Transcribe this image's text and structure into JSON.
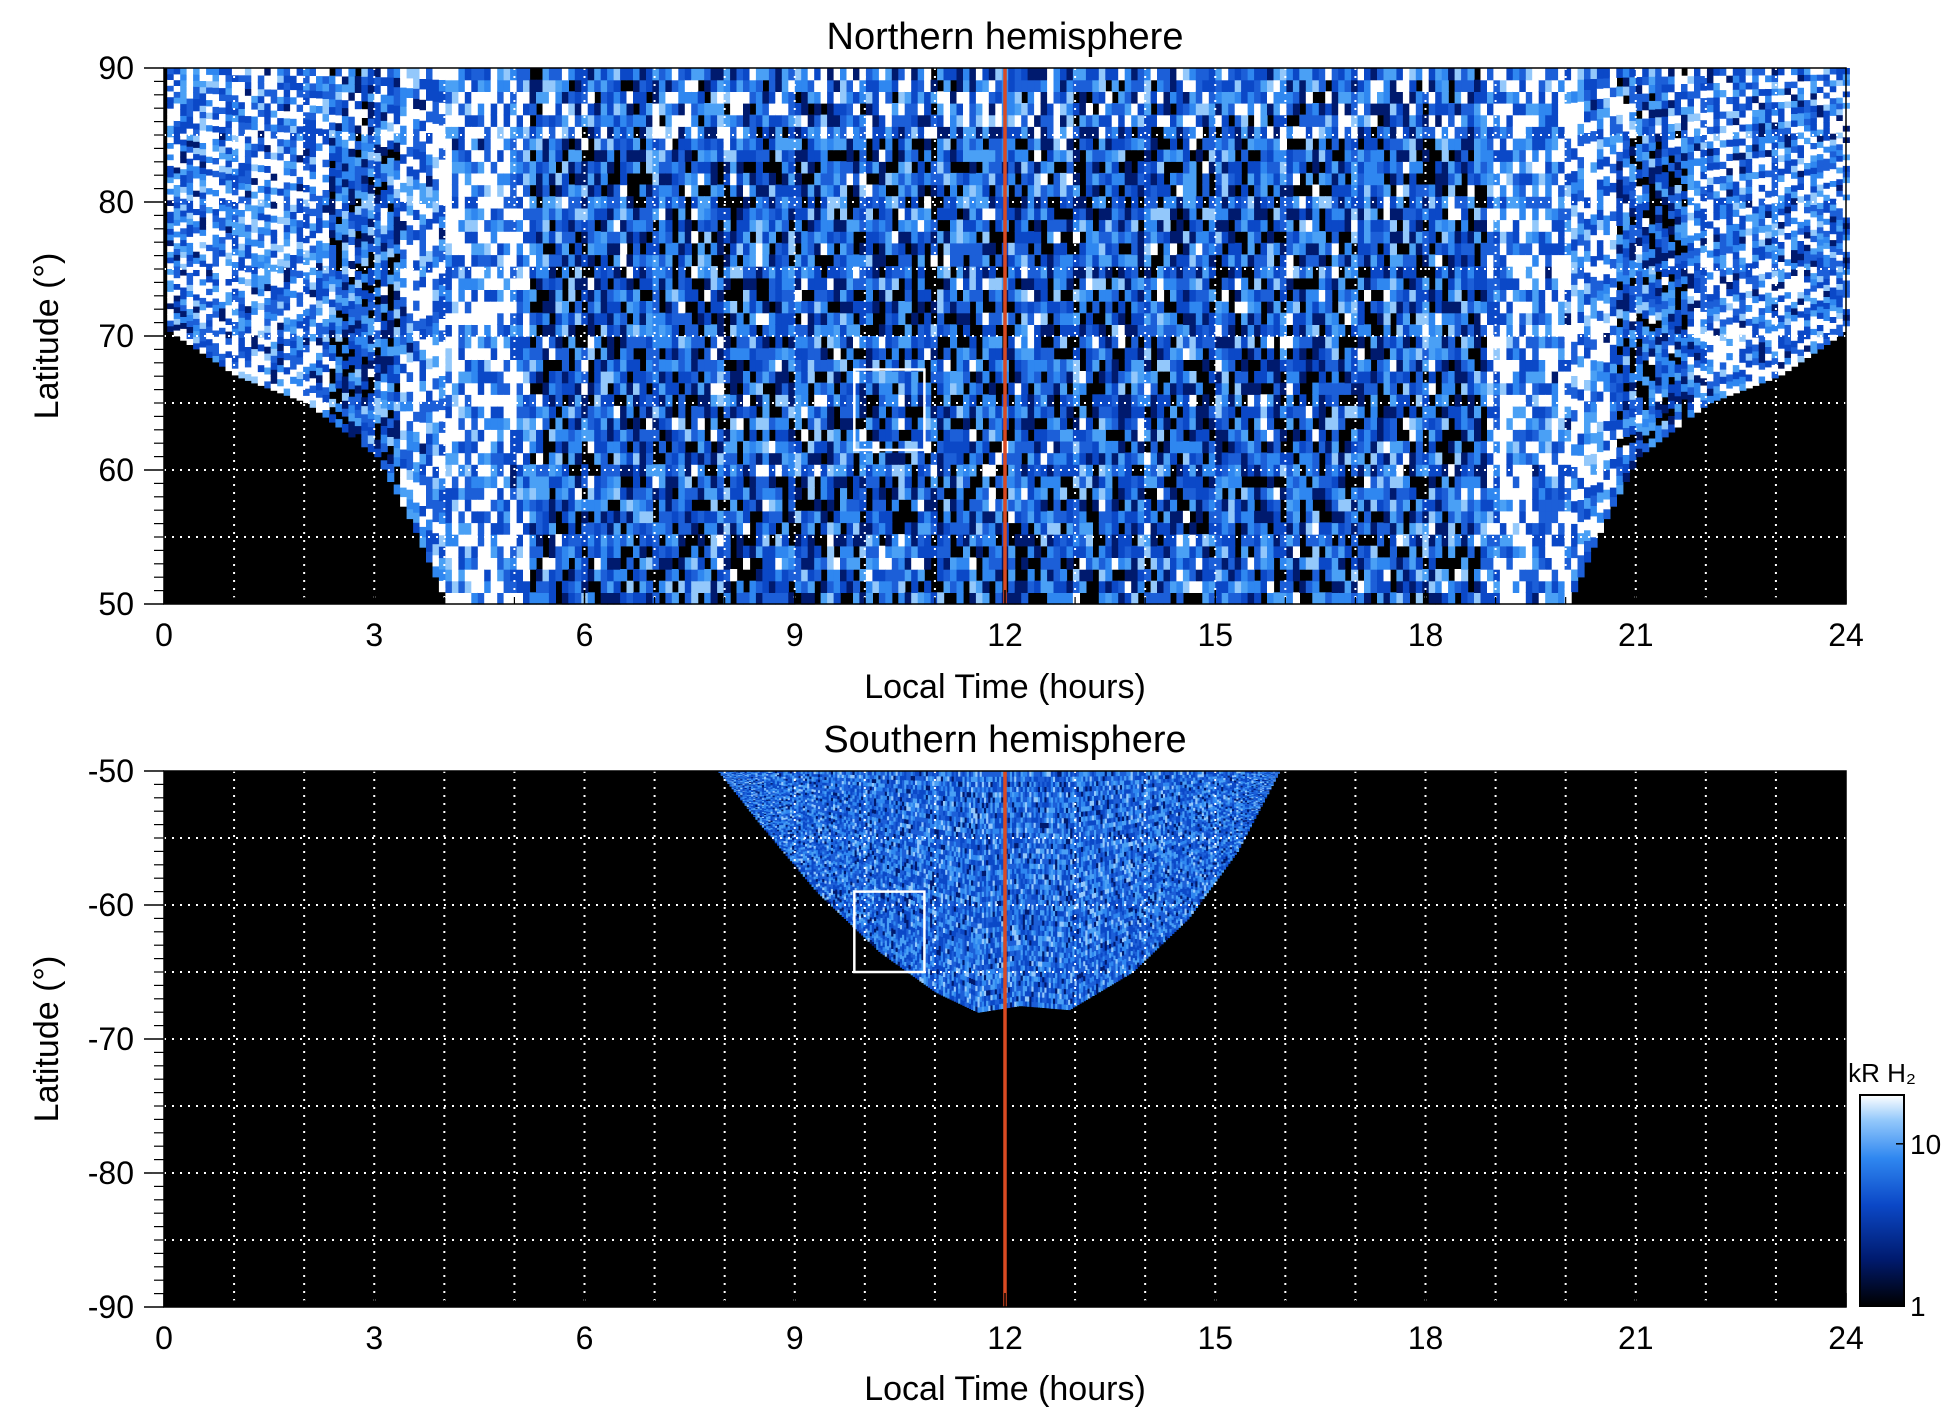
{
  "chart_data": [
    {
      "type": "heatmap",
      "title": "Northern hemisphere",
      "xlabel": "Local Time (hours)",
      "ylabel": "Latitude (°)",
      "xlim": [
        0,
        24
      ],
      "ylim": [
        50,
        90
      ],
      "xticks": [
        0,
        3,
        6,
        9,
        12,
        15,
        18,
        21,
        24
      ],
      "yticks": [
        50,
        60,
        70,
        80,
        90
      ],
      "grid": true,
      "grid_x_step": 1,
      "grid_y_step": 5,
      "reference_line": {
        "x": 12,
        "color": "#d94a22"
      },
      "box": {
        "x": [
          9.85,
          10.85
        ],
        "y": [
          61.5,
          67.5
        ]
      },
      "coverage_boundary": [
        [
          0,
          70.5
        ],
        [
          1,
          67
        ],
        [
          2,
          65
        ],
        [
          3,
          61
        ],
        [
          3.5,
          56
        ],
        [
          4,
          50
        ],
        [
          20,
          50
        ],
        [
          20.5,
          56
        ],
        [
          21,
          61
        ],
        [
          22,
          65
        ],
        [
          23,
          67
        ],
        [
          24,
          70.5
        ]
      ],
      "bright_bands": [
        {
          "lt": [
            3.3,
            5.2
          ],
          "lat": [
            50,
            85
          ]
        },
        {
          "lt": [
            18.8,
            20.7
          ],
          "lat": [
            50,
            85
          ]
        }
      ]
    },
    {
      "type": "heatmap",
      "title": "Southern hemisphere",
      "xlabel": "Local Time (hours)",
      "ylabel": "Latitude (°)",
      "xlim": [
        0,
        24
      ],
      "ylim": [
        -90,
        -50
      ],
      "xticks": [
        0,
        3,
        6,
        9,
        12,
        15,
        18,
        21,
        24
      ],
      "yticks": [
        -90,
        -80,
        -70,
        -60,
        -50
      ],
      "grid": true,
      "grid_x_step": 1,
      "grid_y_step": 5,
      "reference_line": {
        "x": 12,
        "color": "#d94a22"
      },
      "box": {
        "x": [
          9.85,
          10.85
        ],
        "y": [
          -65,
          -59
        ]
      },
      "coverage_boundary": [
        [
          7.9,
          -50
        ],
        [
          8.5,
          -54
        ],
        [
          9.3,
          -59
        ],
        [
          10.2,
          -63.5
        ],
        [
          11,
          -66.5
        ],
        [
          11.6,
          -68
        ],
        [
          12.2,
          -67.5
        ],
        [
          12.9,
          -67.8
        ],
        [
          13.8,
          -65
        ],
        [
          14.6,
          -61
        ],
        [
          15.3,
          -56
        ],
        [
          15.9,
          -50
        ]
      ]
    }
  ],
  "colorbar": {
    "label": "kR H₂",
    "scale": "log",
    "range": [
      1,
      20
    ],
    "ticks": [
      1,
      10
    ],
    "colors": [
      "#000000",
      "#001a6e",
      "#0b48c7",
      "#2f87f0",
      "#93c8fb",
      "#ffffff"
    ]
  },
  "colors": {
    "background": "#000000",
    "grid": "#ffffff",
    "reference": "#d94a22"
  }
}
